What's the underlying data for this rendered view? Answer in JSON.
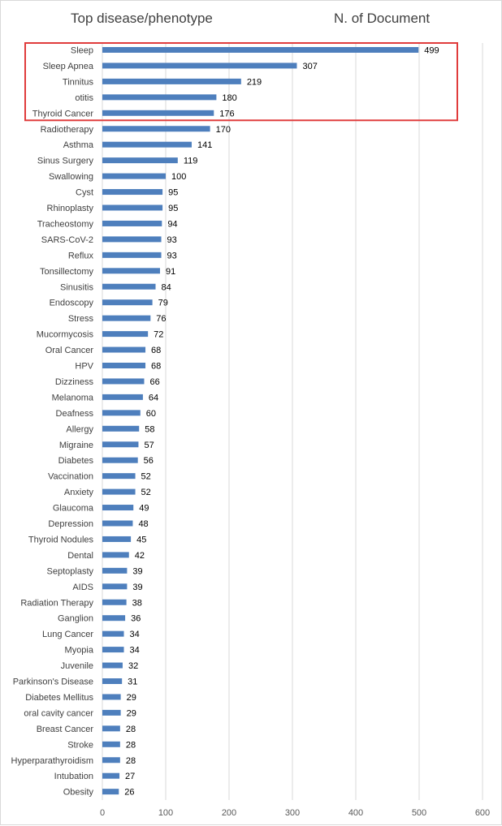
{
  "header": {
    "left": "Top disease/phenotype",
    "right": "N. of Document"
  },
  "chart_data": {
    "type": "bar",
    "orientation": "horizontal",
    "categories": [
      "Sleep",
      "Sleep Apnea",
      "Tinnitus",
      "otitis",
      "Thyroid Cancer",
      "Radiotherapy",
      "Asthma",
      "Sinus Surgery",
      "Swallowing",
      "Cyst",
      "Rhinoplasty",
      "Tracheostomy",
      "SARS-CoV-2",
      "Reflux",
      "Tonsillectomy",
      "Sinusitis",
      "Endoscopy",
      "Stress",
      "Mucormycosis",
      "Oral Cancer",
      "HPV",
      "Dizziness",
      "Melanoma",
      "Deafness",
      "Allergy",
      "Migraine",
      "Diabetes",
      "Vaccination",
      "Anxiety",
      "Glaucoma",
      "Depression",
      "Thyroid Nodules",
      "Dental",
      "Septoplasty",
      "AIDS",
      "Radiation Therapy",
      "Ganglion",
      "Lung Cancer",
      "Myopia",
      "Juvenile",
      "Parkinson's Disease",
      "Diabetes Mellitus",
      "oral cavity cancer",
      "Breast Cancer",
      "Stroke",
      "Hyperparathyroidism",
      "Intubation",
      "Obesity"
    ],
    "values": [
      499,
      307,
      219,
      180,
      176,
      170,
      141,
      119,
      100,
      95,
      95,
      94,
      93,
      93,
      91,
      84,
      79,
      76,
      72,
      68,
      68,
      66,
      64,
      60,
      58,
      57,
      56,
      52,
      52,
      49,
      48,
      45,
      42,
      39,
      39,
      38,
      36,
      34,
      34,
      32,
      31,
      29,
      29,
      28,
      28,
      28,
      27,
      26
    ],
    "xlim": [
      0,
      600
    ],
    "xticks": [
      "0",
      "100",
      "200",
      "300",
      "400",
      "500",
      "600"
    ],
    "grid": true,
    "bar_color": "#4e7fbd",
    "highlight": {
      "from_index": 0,
      "to_index": 4,
      "color": "#e03c3c"
    }
  }
}
